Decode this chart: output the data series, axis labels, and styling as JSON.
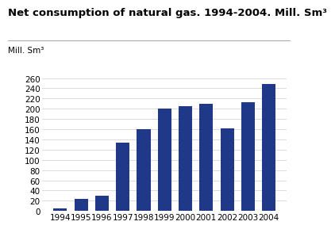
{
  "title": "Net consumption of natural gas. 1994-2004. Mill. Sm³",
  "ylabel": "Mill. Sm³",
  "years": [
    "1994",
    "1995",
    "1996",
    "1997",
    "1998",
    "1999",
    "2000",
    "2001",
    "2002",
    "2003",
    "2004"
  ],
  "values": [
    5,
    23,
    30,
    133,
    160,
    200,
    205,
    210,
    162,
    213,
    248
  ],
  "bar_color": "#1f3988",
  "background_color": "#ffffff",
  "grid_color": "#cccccc",
  "ylim": [
    0,
    260
  ],
  "yticks": [
    0,
    20,
    40,
    60,
    80,
    100,
    120,
    140,
    160,
    180,
    200,
    220,
    240,
    260
  ],
  "title_fontsize": 9.5,
  "tick_fontsize": 7.5,
  "ylabel_fontsize": 7.5
}
